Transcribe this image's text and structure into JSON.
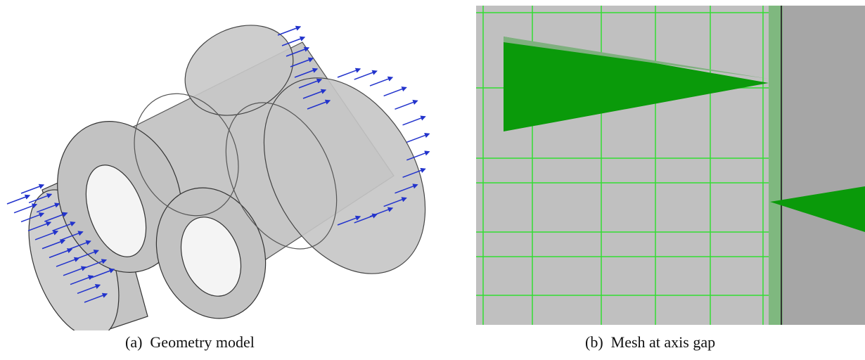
{
  "panels": [
    {
      "label": "(a)",
      "caption": "Geometry model"
    },
    {
      "label": "(b)",
      "caption": "Mesh at axis gap"
    }
  ]
}
